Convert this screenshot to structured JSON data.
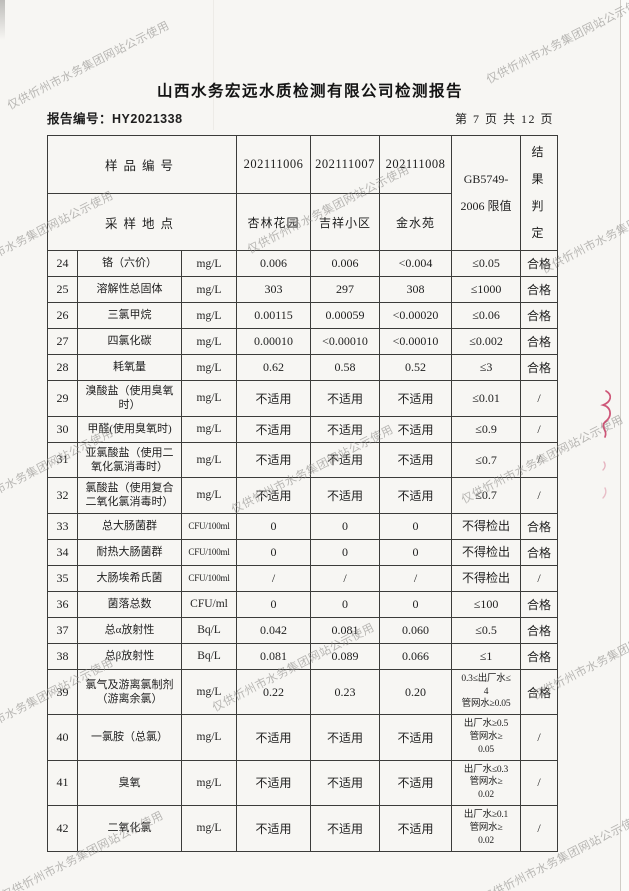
{
  "page": {
    "title": "山西水务宏远水质检测有限公司检测报告",
    "report_no_label": "报告编号：HY2021338",
    "page_info": "第 7 页 共 12 页"
  },
  "watermark": {
    "text": "仅供忻州市水务集团网站公示使用"
  },
  "colors": {
    "watermark": "#918f8c",
    "pen_mark": "#c73a62",
    "table_line": "#3c3c3a"
  },
  "table": {
    "header": {
      "row1_label": "样品编号",
      "row2_label": "采样地点",
      "sample_ids": [
        "202111006",
        "202111007",
        "202111008"
      ],
      "locations": [
        "杏林花园",
        "吉祥小区",
        "金水苑"
      ],
      "limit_col": [
        "GB5749-",
        "2006 限值"
      ],
      "result_col": [
        "结 果",
        "判 定"
      ]
    },
    "rows": [
      {
        "no": "24",
        "name": "铬（六价）",
        "unit": "mg/L",
        "v": [
          "0.006",
          "0.006",
          "<0.004"
        ],
        "limit": "≤0.05",
        "result": "合格"
      },
      {
        "no": "25",
        "name": "溶解性总固体",
        "unit": "mg/L",
        "v": [
          "303",
          "297",
          "308"
        ],
        "limit": "≤1000",
        "result": "合格"
      },
      {
        "no": "26",
        "name": "三氯甲烷",
        "unit": "mg/L",
        "v": [
          "0.00115",
          "0.00059",
          "<0.00020"
        ],
        "limit": "≤0.06",
        "result": "合格"
      },
      {
        "no": "27",
        "name": "四氯化碳",
        "unit": "mg/L",
        "v": [
          "0.00010",
          "<0.00010",
          "<0.00010"
        ],
        "limit": "≤0.002",
        "result": "合格"
      },
      {
        "no": "28",
        "name": "耗氧量",
        "unit": "mg/L",
        "v": [
          "0.62",
          "0.58",
          "0.52"
        ],
        "limit": "≤3",
        "result": "合格"
      },
      {
        "no": "29",
        "name": "溴酸盐（使用臭氧\n时）",
        "unit": "mg/L",
        "v": [
          "不适用",
          "不适用",
          "不适用"
        ],
        "limit": "≤0.01",
        "result": "/"
      },
      {
        "no": "30",
        "name": "甲醛(使用臭氧时)",
        "unit": "mg/L",
        "v": [
          "不适用",
          "不适用",
          "不适用"
        ],
        "limit": "≤0.9",
        "result": "/"
      },
      {
        "no": "31",
        "name": "亚氯酸盐（使用二\n氧化氯消毒时）",
        "unit": "mg/L",
        "v": [
          "不适用",
          "不适用",
          "不适用"
        ],
        "limit": "≤0.7",
        "result": "/"
      },
      {
        "no": "32",
        "name": "氯酸盐（使用复合\n二氧化氯消毒时）",
        "unit": "mg/L",
        "v": [
          "不适用",
          "不适用",
          "不适用"
        ],
        "limit": "≤0.7",
        "result": "/"
      },
      {
        "no": "33",
        "name": "总大肠菌群",
        "unit": "CFU/100ml",
        "v": [
          "0",
          "0",
          "0"
        ],
        "limit": "不得检出",
        "result": "合格"
      },
      {
        "no": "34",
        "name": "耐热大肠菌群",
        "unit": "CFU/100ml",
        "v": [
          "0",
          "0",
          "0"
        ],
        "limit": "不得检出",
        "result": "合格"
      },
      {
        "no": "35",
        "name": "大肠埃希氏菌",
        "unit": "CFU/100ml",
        "v": [
          "/",
          "/",
          "/"
        ],
        "limit": "不得检出",
        "result": "/"
      },
      {
        "no": "36",
        "name": "菌落总数",
        "unit": "CFU/ml",
        "v": [
          "0",
          "0",
          "0"
        ],
        "limit": "≤100",
        "result": "合格"
      },
      {
        "no": "37",
        "name": "总α放射性",
        "unit": "Bq/L",
        "v": [
          "0.042",
          "0.081",
          "0.060"
        ],
        "limit": "≤0.5",
        "result": "合格"
      },
      {
        "no": "38",
        "name": "总β放射性",
        "unit": "Bq/L",
        "v": [
          "0.081",
          "0.089",
          "0.066"
        ],
        "limit": "≤1",
        "result": "合格"
      },
      {
        "no": "39",
        "name": "氯气及游离氯制剂\n（游离余氯）",
        "unit": "mg/L",
        "v": [
          "0.22",
          "0.23",
          "0.20"
        ],
        "limit": "0.3≤出厂水≤\n4\n管网水≥0.05",
        "result": "合格"
      },
      {
        "no": "40",
        "name": "一氯胺（总氯）",
        "unit": "mg/L",
        "v": [
          "不适用",
          "不适用",
          "不适用"
        ],
        "limit": "出厂水≥0.5\n管网水≥\n0.05",
        "result": "/"
      },
      {
        "no": "41",
        "name": "臭氧",
        "unit": "mg/L",
        "v": [
          "不适用",
          "不适用",
          "不适用"
        ],
        "limit": "出厂水≤0.3\n管网水≥\n0.02",
        "result": "/"
      },
      {
        "no": "42",
        "name": "二氧化氯",
        "unit": "mg/L",
        "v": [
          "不适用",
          "不适用",
          "不适用"
        ],
        "limit": "出厂水≥0.1\n管网水≥\n0.02",
        "result": "/"
      }
    ]
  }
}
